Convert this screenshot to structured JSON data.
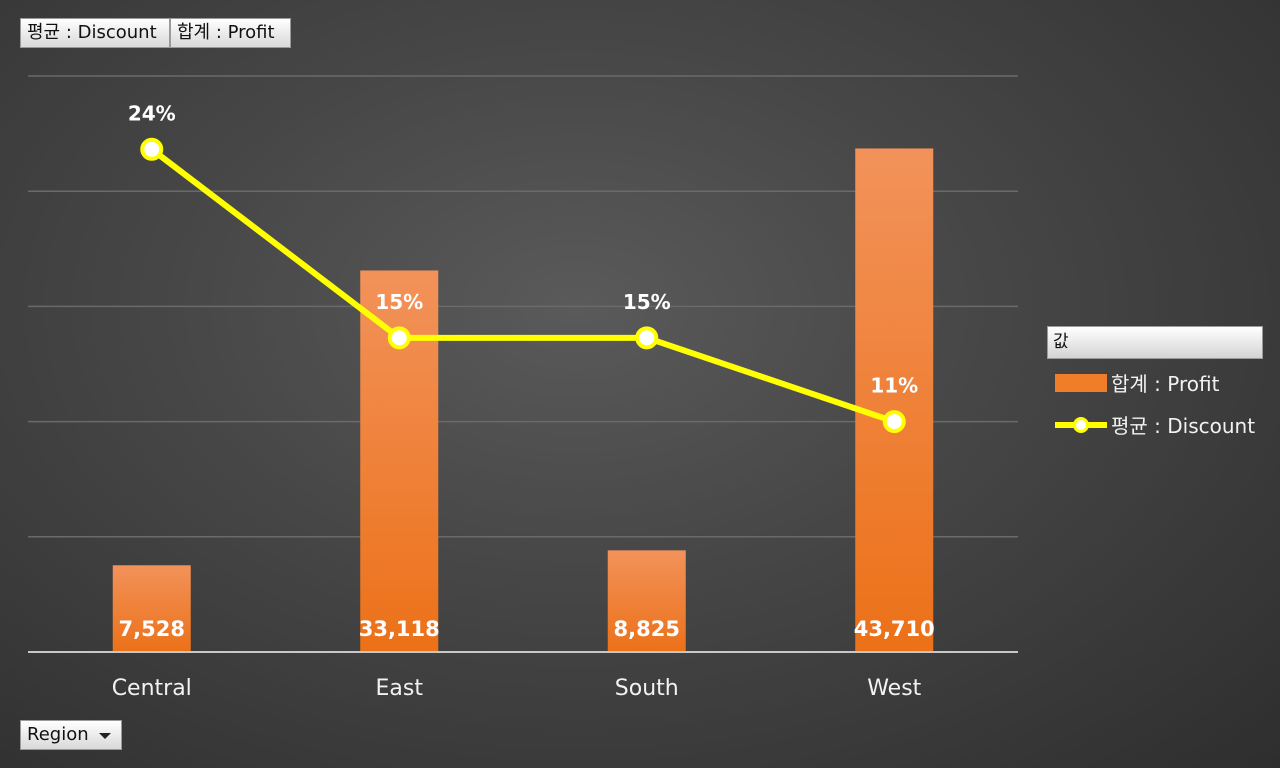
{
  "buttons": {
    "discount": "평균 : Discount",
    "profit": "합계 : Profit",
    "region": "Region"
  },
  "legend": {
    "header": "값",
    "items": [
      "합계 : Profit",
      "평균 : Discount"
    ]
  },
  "chart_data": {
    "type": "bar",
    "categories": [
      "Central",
      "East",
      "South",
      "West"
    ],
    "series": [
      {
        "name": "합계 : Profit",
        "type": "bar",
        "values": [
          7528,
          33118,
          8825,
          43710
        ],
        "labels": [
          "7,528",
          "33,118",
          "8,825",
          "43,710"
        ],
        "color": "#f07d2a"
      },
      {
        "name": "평균 : Discount",
        "type": "line",
        "values": [
          0.24,
          0.15,
          0.15,
          0.11
        ],
        "labels": [
          "24%",
          "15%",
          "15%",
          "11%"
        ],
        "color": "#ffff00"
      }
    ],
    "primary_ylim": [
      0,
      50000
    ],
    "secondary_ylim": [
      0,
      0.275
    ],
    "grid": true,
    "legend_position": "right"
  }
}
